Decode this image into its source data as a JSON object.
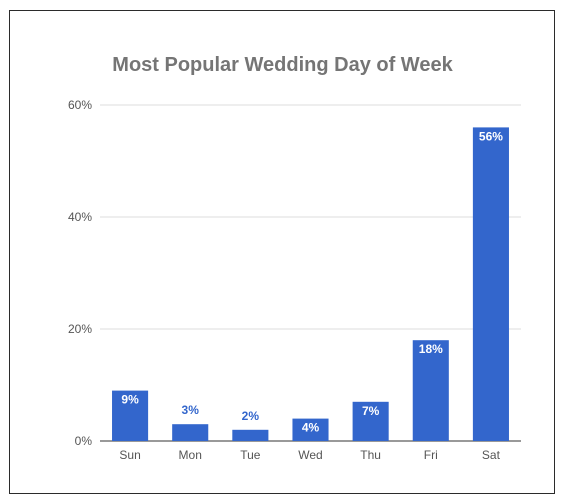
{
  "chart_data": {
    "type": "bar",
    "title": "Most Popular Wedding Day of Week",
    "categories": [
      "Sun",
      "Mon",
      "Tue",
      "Wed",
      "Thu",
      "Fri",
      "Sat"
    ],
    "values": [
      9,
      3,
      2,
      4,
      7,
      18,
      56
    ],
    "value_labels": [
      "9%",
      "3%",
      "2%",
      "4%",
      "7%",
      "18%",
      "56%"
    ],
    "y_ticks": [
      0,
      20,
      40,
      60
    ],
    "y_tick_labels": [
      "0%",
      "20%",
      "40%",
      "60%"
    ],
    "ylim": [
      0,
      60
    ],
    "xlabel": "",
    "ylabel": "",
    "grid": true,
    "legend": "none",
    "bar_color": "#3366CC",
    "gridline_color": "#dddddd",
    "baseline_color": "#333333",
    "label_color_inside": "#ffffff",
    "label_color_outside": "#3366CC"
  }
}
